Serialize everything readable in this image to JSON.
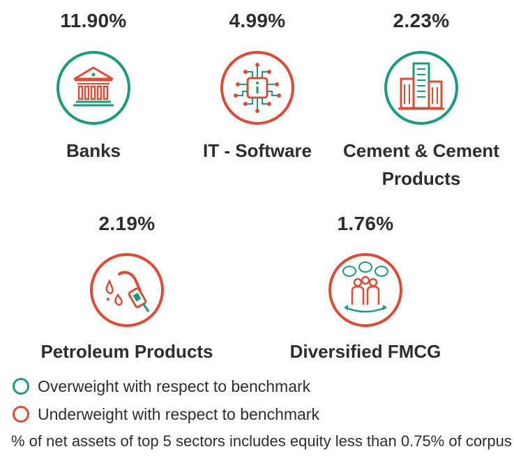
{
  "colors": {
    "overweight": "#1a9b7f",
    "underweight": "#de4b35"
  },
  "sectors": [
    {
      "percent": "11.90%",
      "name_lines": [
        "Banks"
      ],
      "weight": "overweight",
      "icon": "bank-building-icon"
    },
    {
      "percent": "4.99%",
      "name_lines": [
        "IT - Software"
      ],
      "weight": "underweight",
      "icon": "circuit-chip-icon"
    },
    {
      "percent": "2.23%",
      "name_lines": [
        "Cement & Cement",
        "Products"
      ],
      "weight": "overweight",
      "icon": "office-buildings-icon"
    },
    {
      "percent": "2.19%",
      "name_lines": [
        "Petroleum Products"
      ],
      "weight": "underweight",
      "icon": "fuel-nozzle-icon"
    },
    {
      "percent": "1.76%",
      "name_lines": [
        "Diversified FMCG"
      ],
      "weight": "underweight",
      "icon": "consumers-group-icon"
    }
  ],
  "legend": [
    {
      "label": "Overweight with respect to benchmark",
      "weight": "overweight"
    },
    {
      "label": "Underweight with respect to benchmark",
      "weight": "underweight"
    }
  ],
  "note": "% of net assets of top 5 sectors includes equity less than 0.75% of corpus"
}
